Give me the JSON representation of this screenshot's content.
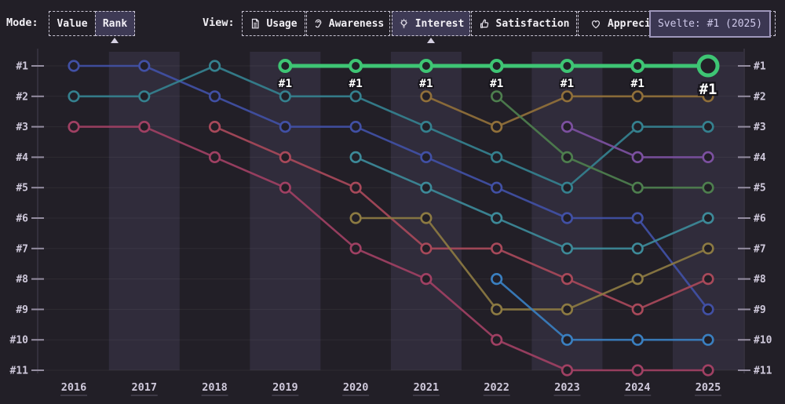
{
  "toolbar": {
    "mode_label": "Mode:",
    "mode_options": [
      {
        "label": "Value",
        "selected": false
      },
      {
        "label": "Rank",
        "selected": true
      }
    ],
    "view_label": "View:",
    "view_options": [
      {
        "label": "Usage",
        "icon": "document-icon",
        "selected": false
      },
      {
        "label": "Awareness",
        "icon": "ear-icon",
        "selected": false
      },
      {
        "label": "Interest",
        "icon": "lightbulb-icon",
        "selected": true
      },
      {
        "label": "Satisfaction",
        "icon": "thumbs-up-icon",
        "selected": false
      },
      {
        "label": "Appreciation",
        "icon": "heart-icon",
        "selected": false
      }
    ]
  },
  "tooltip": {
    "text": "Svelte: #1 (2025)"
  },
  "colors": {
    "background": "#221f27",
    "band": "#7a6fa8",
    "highlight_green": "#3ec574",
    "axis_text": "#cfc9db",
    "tick": "#948da0",
    "tooltip_border": "#9e97bb",
    "tooltip_bg": "#3b3752"
  },
  "chart_data": {
    "type": "line",
    "subtype": "bump-rank",
    "title": "",
    "x_labels": [
      "2016",
      "2017",
      "2018",
      "2019",
      "2020",
      "2021",
      "2022",
      "2023",
      "2024",
      "2025"
    ],
    "y_rank_labels": [
      "#1",
      "#2",
      "#3",
      "#4",
      "#5",
      "#6",
      "#7",
      "#8",
      "#9",
      "#10",
      "#11"
    ],
    "y_axis_sides": [
      "left",
      "right"
    ],
    "grid": "faint-horizontal",
    "highlight_point_label": "#1",
    "series": [
      {
        "name": "series-indigo",
        "color": "#4150a5",
        "highlight": false,
        "points": [
          [
            2016,
            1
          ],
          [
            2017,
            1
          ],
          [
            2018,
            2
          ],
          [
            2019,
            3
          ],
          [
            2020,
            3
          ],
          [
            2021,
            4
          ],
          [
            2022,
            5
          ],
          [
            2023,
            6
          ],
          [
            2024,
            6
          ],
          [
            2025,
            9
          ]
        ]
      },
      {
        "name": "series-teal",
        "color": "#35818f",
        "highlight": false,
        "points": [
          [
            2016,
            2
          ],
          [
            2017,
            2
          ],
          [
            2018,
            1
          ],
          [
            2019,
            2
          ],
          [
            2020,
            2
          ],
          [
            2021,
            3
          ],
          [
            2022,
            4
          ],
          [
            2023,
            5
          ],
          [
            2024,
            3
          ],
          [
            2025,
            3
          ]
        ]
      },
      {
        "name": "series-maroon",
        "color": "#a04063",
        "highlight": false,
        "points": [
          [
            2016,
            3
          ],
          [
            2017,
            3
          ],
          [
            2018,
            4
          ],
          [
            2019,
            5
          ],
          [
            2020,
            7
          ],
          [
            2021,
            8
          ],
          [
            2022,
            10
          ],
          [
            2023,
            11
          ],
          [
            2024,
            11
          ],
          [
            2025,
            11
          ]
        ]
      },
      {
        "name": "series-red",
        "color": "#a8495a",
        "highlight": false,
        "points": [
          [
            2018,
            3
          ],
          [
            2019,
            4
          ],
          [
            2020,
            5
          ],
          [
            2021,
            7
          ],
          [
            2022,
            7
          ],
          [
            2023,
            8
          ],
          [
            2024,
            9
          ],
          [
            2025,
            8
          ]
        ]
      },
      {
        "name": "series-teal-2",
        "color": "#3d8a99",
        "highlight": false,
        "points": [
          [
            2020,
            4
          ],
          [
            2021,
            5
          ],
          [
            2022,
            6
          ],
          [
            2023,
            7
          ],
          [
            2024,
            7
          ],
          [
            2025,
            6
          ]
        ]
      },
      {
        "name": "series-olive-gold",
        "color": "#8c7a42",
        "highlight": false,
        "points": [
          [
            2020,
            6
          ],
          [
            2021,
            6
          ],
          [
            2022,
            9
          ],
          [
            2023,
            9
          ],
          [
            2024,
            8
          ],
          [
            2025,
            7
          ]
        ]
      },
      {
        "name": "series-brown-gold",
        "color": "#91703a",
        "highlight": false,
        "points": [
          [
            2021,
            2
          ],
          [
            2022,
            3
          ],
          [
            2023,
            2
          ],
          [
            2024,
            2
          ],
          [
            2025,
            2
          ]
        ]
      },
      {
        "name": "series-green",
        "color": "#4e7f4e",
        "highlight": false,
        "points": [
          [
            2022,
            2
          ],
          [
            2023,
            4
          ],
          [
            2024,
            5
          ],
          [
            2025,
            5
          ]
        ]
      },
      {
        "name": "series-blue",
        "color": "#3a7fc0",
        "highlight": false,
        "points": [
          [
            2022,
            8
          ],
          [
            2023,
            10
          ],
          [
            2024,
            10
          ],
          [
            2025,
            10
          ]
        ]
      },
      {
        "name": "series-purple",
        "color": "#7c50a0",
        "highlight": false,
        "points": [
          [
            2023,
            3
          ],
          [
            2024,
            4
          ],
          [
            2025,
            4
          ]
        ]
      },
      {
        "name": "svelte",
        "display_name": "Svelte",
        "color": "#3ec574",
        "highlight": true,
        "points": [
          [
            2019,
            1
          ],
          [
            2020,
            1
          ],
          [
            2021,
            1
          ],
          [
            2022,
            1
          ],
          [
            2023,
            1
          ],
          [
            2024,
            1
          ],
          [
            2025,
            1
          ]
        ]
      }
    ]
  }
}
